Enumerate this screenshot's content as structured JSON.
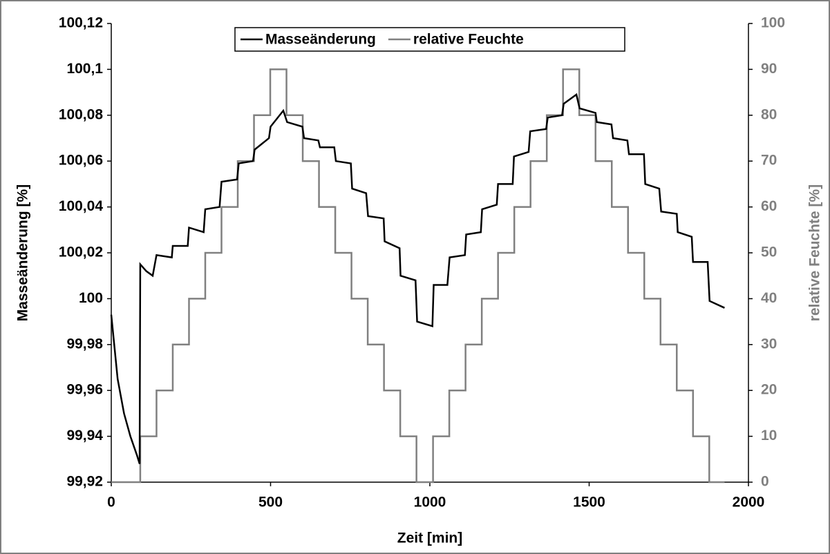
{
  "chart_data": {
    "type": "line",
    "xlabel": "Zeit [min]",
    "ylabel": "Masseänderung [%]",
    "y2label": "relative Feuchte [%]",
    "xlim": [
      0,
      2000
    ],
    "xticks": [
      0,
      500,
      1000,
      1500,
      2000
    ],
    "ylim": [
      99.92,
      100.12
    ],
    "yticks": [
      {
        "value": 99.92,
        "label": "99,92"
      },
      {
        "value": 99.94,
        "label": "99,94"
      },
      {
        "value": 99.96,
        "label": "99,96"
      },
      {
        "value": 99.98,
        "label": "99,98"
      },
      100,
      {
        "value": 100.02,
        "label": "100,02"
      },
      {
        "value": 100.04,
        "label": "100,04"
      },
      {
        "value": 100.06,
        "label": "100,06"
      },
      {
        "value": 100.08,
        "label": "100,08"
      },
      {
        "value": 100.1,
        "label": "100,1"
      },
      {
        "value": 100.12,
        "label": "100,12"
      }
    ],
    "y2lim": [
      0,
      100
    ],
    "y2ticks": [
      0,
      10,
      20,
      30,
      40,
      50,
      60,
      70,
      80,
      90,
      100
    ],
    "grid": false,
    "legend": "upper center",
    "series": [
      {
        "name": "Masseänderung",
        "color": "#000000",
        "x": [
          0,
          20,
          40,
          60,
          80,
          89,
          91,
          110,
          130,
          142,
          190,
          193,
          240,
          244,
          290,
          295,
          340,
          346,
          395,
          400,
          445,
          450,
          495,
          500,
          540,
          552,
          600,
          605,
          650,
          655,
          700,
          705,
          752,
          756,
          800,
          806,
          855,
          858,
          905,
          908,
          955,
          960,
          1008,
          1012,
          1055,
          1062,
          1110,
          1114,
          1160,
          1164,
          1210,
          1214,
          1260,
          1264,
          1310,
          1315,
          1365,
          1370,
          1415,
          1420,
          1460,
          1470,
          1520,
          1524,
          1570,
          1575,
          1620,
          1625,
          1672,
          1676,
          1720,
          1726,
          1775,
          1778,
          1822,
          1826,
          1872,
          1878,
          1925
        ],
        "values": [
          99.993,
          99.965,
          99.95,
          99.94,
          99.932,
          99.928,
          100.015,
          100.012,
          100.01,
          100.019,
          100.018,
          100.023,
          100.023,
          100.031,
          100.029,
          100.039,
          100.04,
          100.051,
          100.052,
          100.059,
          100.06,
          100.065,
          100.07,
          100.075,
          100.082,
          100.077,
          100.075,
          100.07,
          100.069,
          100.066,
          100.066,
          100.06,
          100.059,
          100.048,
          100.046,
          100.036,
          100.035,
          100.025,
          100.022,
          100.01,
          100.008,
          99.99,
          99.988,
          100.006,
          100.006,
          100.018,
          100.019,
          100.028,
          100.029,
          100.039,
          100.041,
          100.05,
          100.05,
          100.062,
          100.064,
          100.073,
          100.074,
          100.079,
          100.08,
          100.085,
          100.089,
          100.083,
          100.081,
          100.077,
          100.076,
          100.07,
          100.069,
          100.063,
          100.063,
          100.05,
          100.048,
          100.038,
          100.037,
          100.029,
          100.027,
          100.016,
          100.016,
          99.999,
          99.996
        ]
      },
      {
        "name": "relative Feuchte",
        "color": "#808080",
        "axis": "y2",
        "x": [
          0,
          91,
          91,
          142,
          142,
          193,
          193,
          244,
          244,
          295,
          295,
          346,
          346,
          397,
          397,
          448,
          448,
          499,
          499,
          550,
          550,
          601,
          601,
          652,
          652,
          703,
          703,
          754,
          754,
          805,
          805,
          856,
          856,
          907,
          907,
          958,
          958,
          1010,
          1010,
          1061,
          1061,
          1112,
          1112,
          1163,
          1163,
          1214,
          1214,
          1265,
          1265,
          1316,
          1316,
          1367,
          1367,
          1418,
          1418,
          1469,
          1469,
          1520,
          1520,
          1571,
          1571,
          1622,
          1622,
          1673,
          1673,
          1724,
          1724,
          1775,
          1775,
          1826,
          1826,
          1877,
          1877,
          1925
        ],
        "values": [
          0,
          0,
          10,
          10,
          20,
          20,
          30,
          30,
          40,
          40,
          50,
          50,
          60,
          60,
          70,
          70,
          80,
          80,
          90,
          90,
          80,
          80,
          70,
          70,
          60,
          60,
          50,
          50,
          40,
          40,
          30,
          30,
          20,
          20,
          10,
          10,
          0,
          0,
          10,
          10,
          20,
          20,
          30,
          30,
          40,
          40,
          50,
          50,
          60,
          60,
          70,
          70,
          80,
          80,
          90,
          90,
          80,
          80,
          70,
          70,
          60,
          60,
          50,
          50,
          40,
          40,
          30,
          30,
          20,
          20,
          10,
          10,
          0,
          0
        ]
      }
    ]
  }
}
